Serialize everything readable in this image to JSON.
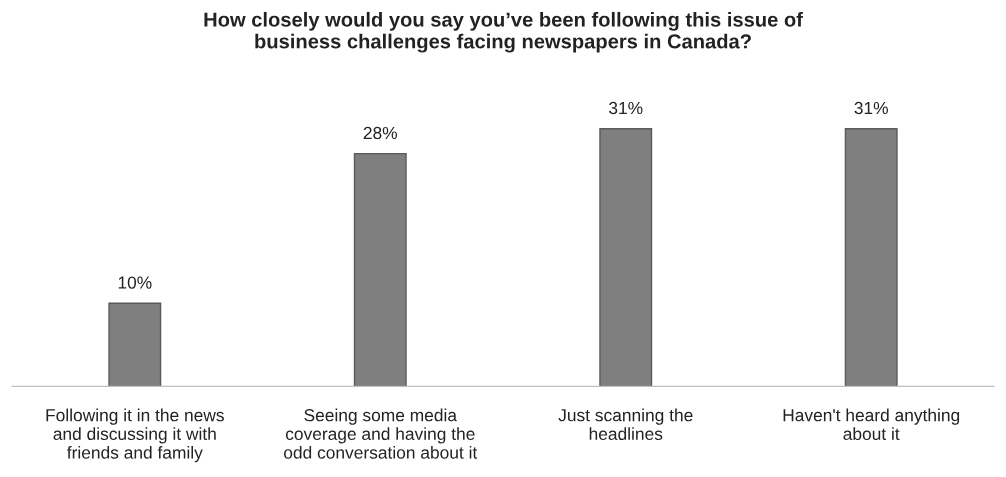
{
  "chart_data": {
    "type": "bar",
    "title": "How closely would you say you’ve been following this issue of\nbusiness challenges facing newspapers in Canada?",
    "categories": [
      "Following it in the news\nand discussing it with\nfriends and family",
      "Seeing some media\ncoverage and having the\nodd conversation about it",
      "Just scanning the\nheadlines",
      "Haven't heard anything\nabout it"
    ],
    "values": [
      10,
      28,
      31,
      31
    ],
    "value_labels": [
      "10%",
      "28%",
      "31%",
      "31%"
    ],
    "color": "#7f7f7f",
    "grid": false,
    "legend": false
  }
}
